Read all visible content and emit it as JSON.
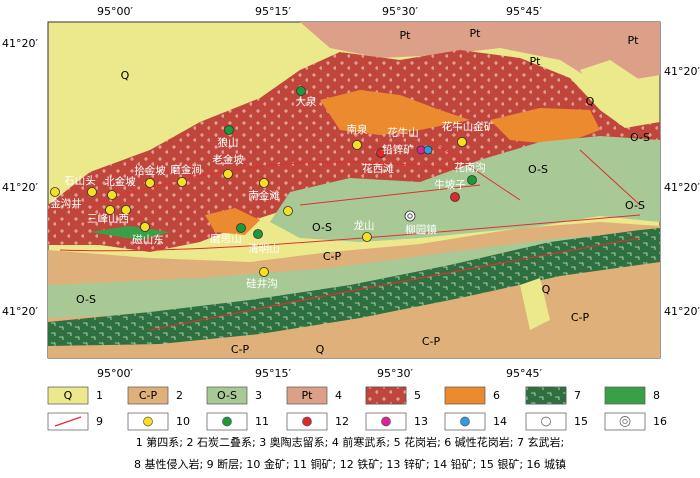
{
  "axes": {
    "top": [
      "95°00′",
      "95°15′",
      "95°30′",
      "95°45′"
    ],
    "bottom": [
      "95°00′",
      "95°15′",
      "95°30′",
      "95°45′"
    ],
    "left": [
      "41°20′",
      "41°20′",
      "41°20′"
    ],
    "right": [
      "41°20′",
      "41°20′",
      "41°20′"
    ]
  },
  "unit_labels": [
    "Q",
    "Pt",
    "Pt",
    "Pt",
    "Pt",
    "Q",
    "O-S",
    "O-S",
    "O-S",
    "O-S",
    "C-P",
    "O-S",
    "Q",
    "C-P",
    "C-P",
    "C-P",
    "Q"
  ],
  "places": [
    "大泉",
    "狼山",
    "南泉",
    "花牛山",
    "铅锌矿",
    "花牛山金矿",
    "花西滩",
    "花南沟",
    "牛坡子",
    "柳园镇",
    "龙山",
    "南金滩",
    "老金坡",
    "磨金涧",
    "拾金坡",
    "北金坡",
    "石山头",
    "金沟井",
    "三峰山西",
    "磁山东",
    "磨思山",
    "清明山",
    "硅井沟"
  ],
  "legend": {
    "items": [
      {
        "label": "Q",
        "number": "1"
      },
      {
        "label": "C-P",
        "number": "2"
      },
      {
        "label": "O-S",
        "number": "3"
      },
      {
        "label": "Pt",
        "number": "4"
      },
      {
        "number": "5"
      },
      {
        "number": "6"
      },
      {
        "number": "7"
      },
      {
        "number": "8"
      },
      {
        "number": "9"
      },
      {
        "number": "10"
      },
      {
        "number": "11"
      },
      {
        "number": "12"
      },
      {
        "number": "13"
      },
      {
        "number": "14"
      },
      {
        "number": "15"
      },
      {
        "number": "16"
      }
    ]
  },
  "caption": [
    "1 第四系; 2 石炭二叠系; 3 奥陶志留系; 4 前寒武系; 5 花岗岩; 6 碱性花岗岩; 7 玄武岩;",
    "8 基性侵入岩; 9 断层; 10 金矿; 11 铜矿; 12 铁矿; 13 锌矿; 14 铅矿; 15 银矿; 16 城镇"
  ]
}
